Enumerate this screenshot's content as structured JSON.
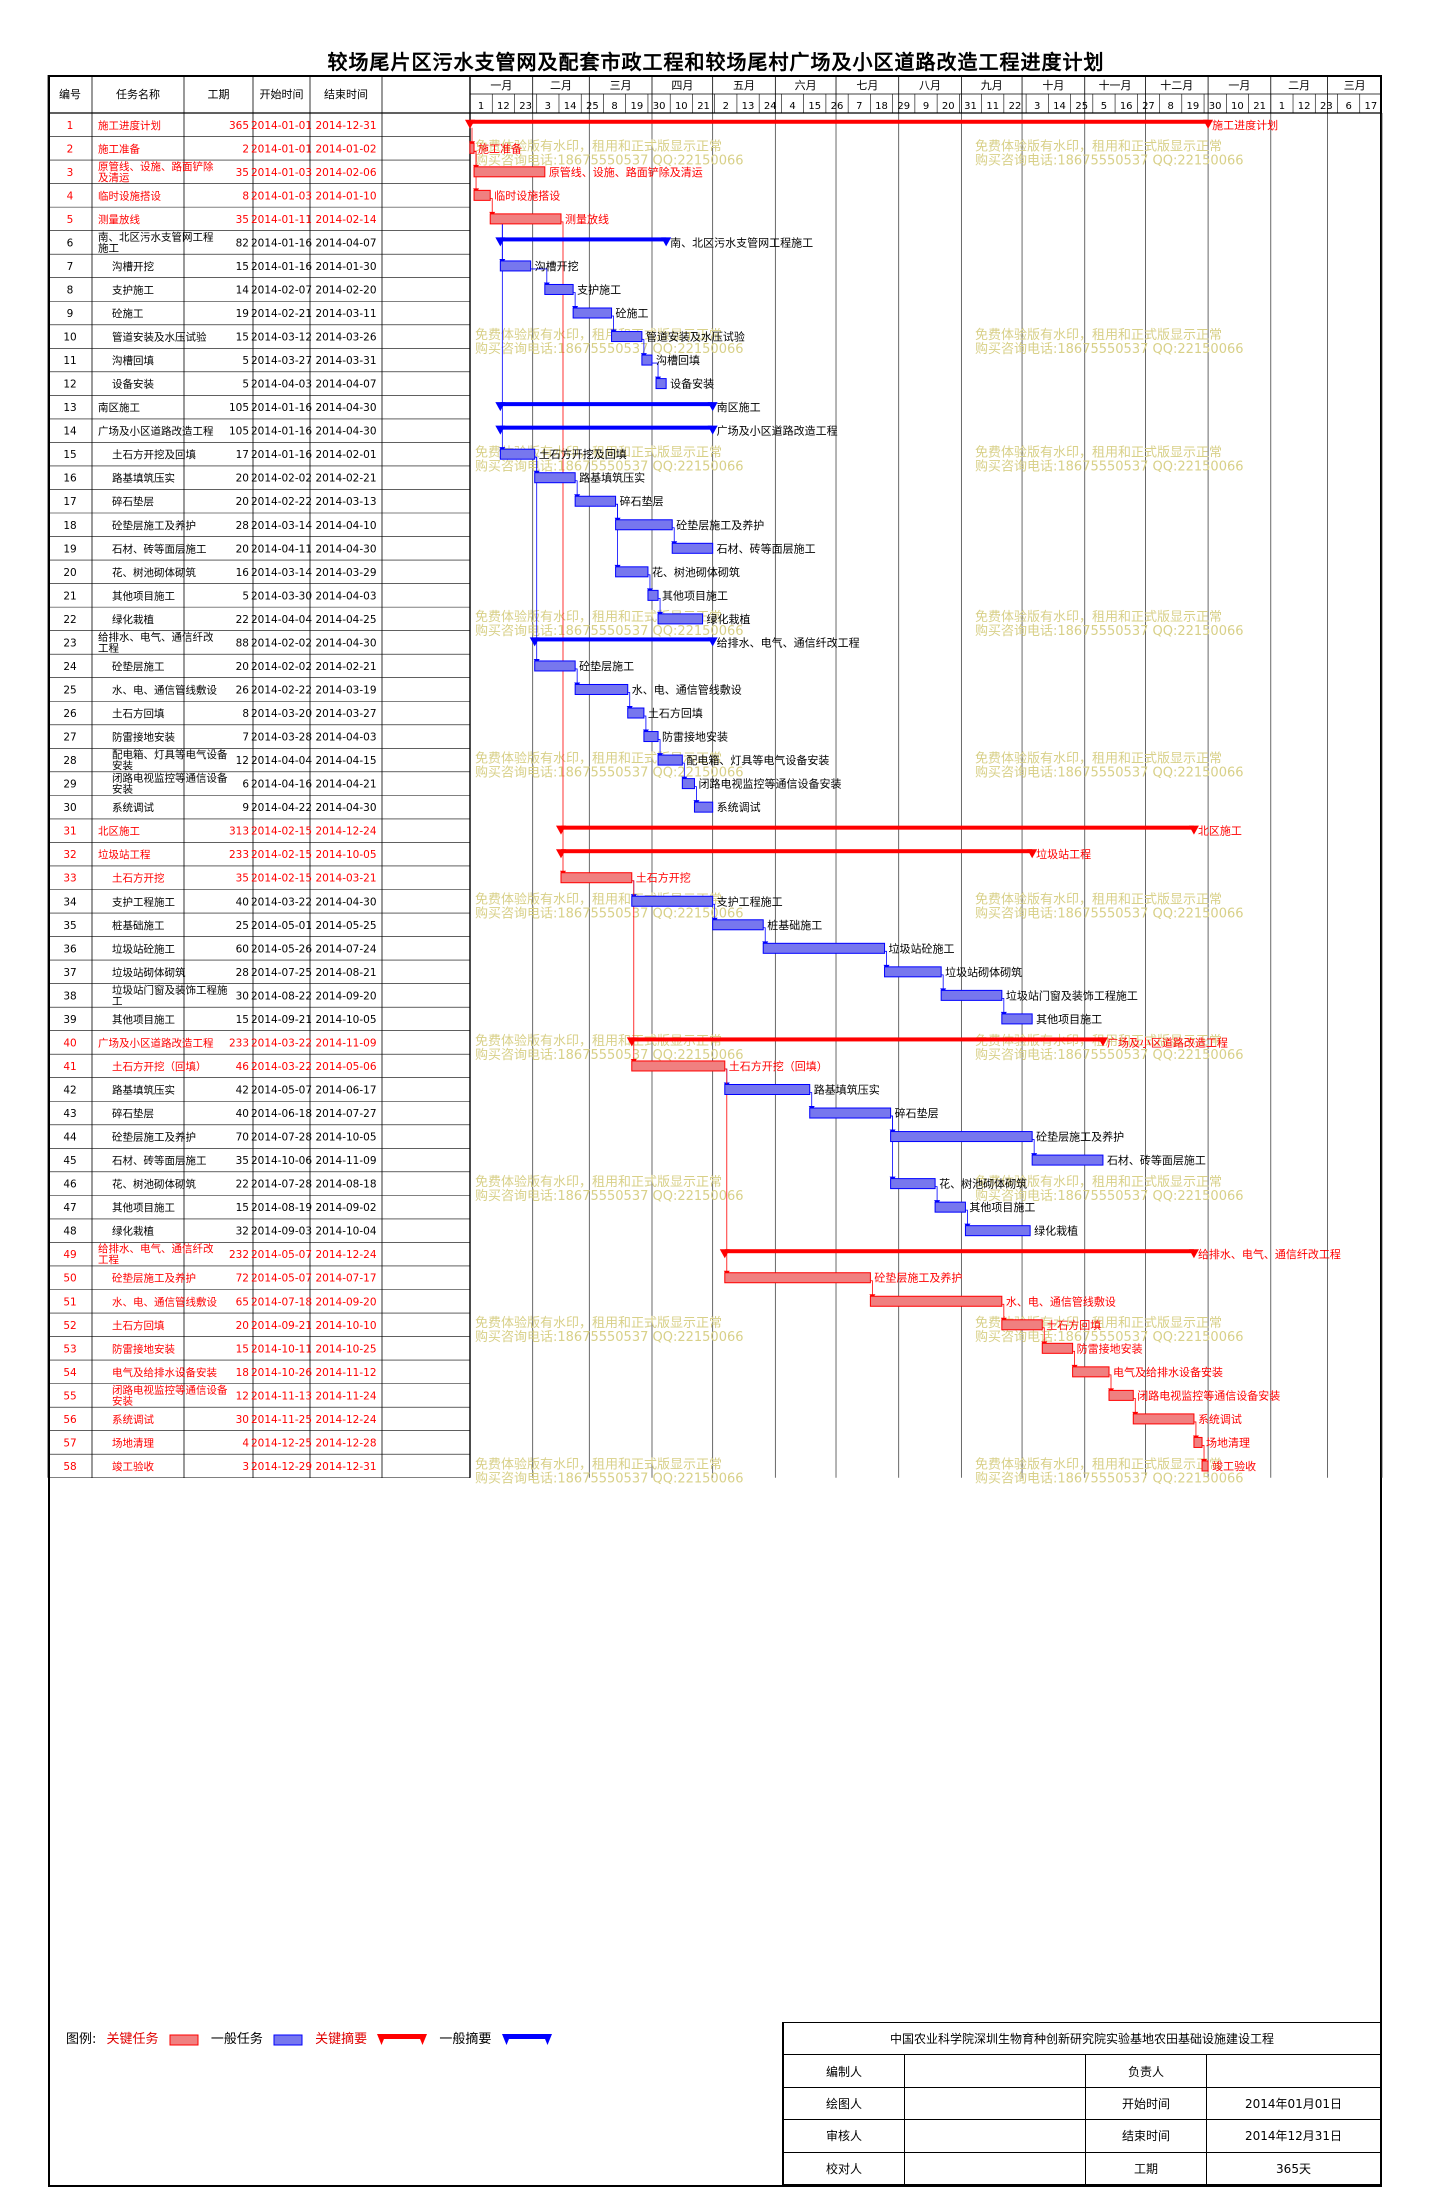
{
  "title": "较场尾片区污水支管网及配套市政工程和较场尾村广场及小区道路改造工程进度计划",
  "columns": {
    "no": "编号",
    "name": "任务名称",
    "dur": "工期",
    "start": "开始时间",
    "end": "结束时间"
  },
  "months": [
    "一月",
    "二月",
    "三月",
    "四月",
    "五月",
    "六月",
    "七月",
    "八月",
    "九月",
    "十月",
    "十一月",
    "十二月",
    "一月",
    "二月",
    "三月"
  ],
  "weeks": [
    "1",
    "12",
    "23",
    "3",
    "14",
    "25",
    "8",
    "19",
    "30",
    "10",
    "21",
    "2",
    "13",
    "24",
    "4",
    "15",
    "26",
    "7",
    "18",
    "29",
    "9",
    "20",
    "31",
    "11",
    "22",
    "3",
    "14",
    "25",
    "5",
    "16",
    "27",
    "8",
    "19",
    "30",
    "10",
    "21",
    "1",
    "12",
    "23",
    "6",
    "17"
  ],
  "watermark_lines": [
    "免费体验版有水印，租用和正式版显示正常",
    "购买咨询电话:18675550537 QQ:22150066"
  ],
  "legend": {
    "label": "图例:",
    "key_task": "关键任务",
    "normal_task": "一般任务",
    "key_summary": "关键摘要",
    "normal_summary": "一般摘要"
  },
  "signature": {
    "org": "中国农业科学院深圳生物育种创新研究院实验基地农田基础设施建设工程",
    "rows": [
      [
        "编制人",
        "",
        "负责人",
        ""
      ],
      [
        "绘图人",
        "",
        "开始时间",
        "2014年01月01日"
      ],
      [
        "审核人",
        "",
        "结束时间",
        "2014年12月31日"
      ],
      [
        "校对人",
        "",
        "工期",
        "365天"
      ]
    ]
  },
  "colors": {
    "critical": "#ff0000",
    "critical_fill": "#f08080",
    "normal": "#0000ff",
    "normal_fill": "#7777ee",
    "watermark": "#d8d088",
    "grid": "#999999"
  },
  "chart_data": {
    "type": "gantt",
    "time_range": [
      "2014-01-01",
      "2015-03-28"
    ],
    "tasks": [
      {
        "id": 1,
        "name": "施工进度计划",
        "duration": 365,
        "start": "2014-01-01",
        "end": "2014-12-31",
        "kind": "summary",
        "critical": true,
        "label": "施工进度计划"
      },
      {
        "id": 2,
        "name": "施工准备",
        "duration": 2,
        "start": "2014-01-01",
        "end": "2014-01-02",
        "kind": "task",
        "critical": true,
        "label": "施工准备",
        "deps": [
          1
        ]
      },
      {
        "id": 3,
        "name": "原管线、设施、路面铲除及清运",
        "duration": 35,
        "start": "2014-01-03",
        "end": "2014-02-06",
        "kind": "task",
        "critical": true,
        "label": "原管线、设施、路面铲除及清运",
        "deps": [
          2
        ]
      },
      {
        "id": 4,
        "name": "临时设施搭设",
        "duration": 8,
        "start": "2014-01-03",
        "end": "2014-01-10",
        "kind": "task",
        "critical": true,
        "label": "临时设施搭设",
        "deps": [
          2
        ]
      },
      {
        "id": 5,
        "name": "测量放线",
        "duration": 35,
        "start": "2014-01-11",
        "end": "2014-02-14",
        "kind": "task",
        "critical": true,
        "label": "测量放线",
        "deps": [
          4
        ]
      },
      {
        "id": 6,
        "name": "南、北区污水支管网工程施工",
        "duration": 82,
        "start": "2014-01-16",
        "end": "2014-04-07",
        "kind": "summary",
        "critical": false,
        "label": "南、北区污水支管网工程施工"
      },
      {
        "id": 7,
        "name": "沟槽开挖",
        "duration": 15,
        "start": "2014-01-16",
        "end": "2014-01-30",
        "kind": "task",
        "critical": false,
        "label": "沟槽开挖",
        "deps": [
          5
        ]
      },
      {
        "id": 8,
        "name": "支护施工",
        "duration": 14,
        "start": "2014-02-07",
        "end": "2014-02-20",
        "kind": "task",
        "critical": false,
        "label": "支护施工",
        "deps": [
          7
        ]
      },
      {
        "id": 9,
        "name": "砼施工",
        "duration": 19,
        "start": "2014-02-21",
        "end": "2014-03-11",
        "kind": "task",
        "critical": false,
        "label": "砼施工",
        "deps": [
          8
        ]
      },
      {
        "id": 10,
        "name": "管道安装及水压试验",
        "duration": 15,
        "start": "2014-03-12",
        "end": "2014-03-26",
        "kind": "task",
        "critical": false,
        "label": "管道安装及水压试验",
        "deps": [
          9
        ]
      },
      {
        "id": 11,
        "name": "沟槽回填",
        "duration": 5,
        "start": "2014-03-27",
        "end": "2014-03-31",
        "kind": "task",
        "critical": false,
        "label": "沟槽回填",
        "deps": [
          10
        ]
      },
      {
        "id": 12,
        "name": "设备安装",
        "duration": 5,
        "start": "2014-04-03",
        "end": "2014-04-07",
        "kind": "task",
        "critical": false,
        "label": "设备安装",
        "deps": [
          11
        ]
      },
      {
        "id": 13,
        "name": "南区施工",
        "duration": 105,
        "start": "2014-01-16",
        "end": "2014-04-30",
        "kind": "summary",
        "critical": false,
        "label": "南区施工"
      },
      {
        "id": 14,
        "name": "广场及小区道路改造工程",
        "duration": 105,
        "start": "2014-01-16",
        "end": "2014-04-30",
        "kind": "summary",
        "critical": false,
        "label": "广场及小区道路改造工程"
      },
      {
        "id": 15,
        "name": "土石方开挖及回填",
        "duration": 17,
        "start": "2014-01-16",
        "end": "2014-02-01",
        "kind": "task",
        "critical": false,
        "label": "土石方开挖及回填",
        "deps": [
          5
        ]
      },
      {
        "id": 16,
        "name": "路基填筑压实",
        "duration": 20,
        "start": "2014-02-02",
        "end": "2014-02-21",
        "kind": "task",
        "critical": false,
        "label": "路基填筑压实",
        "deps": [
          15
        ]
      },
      {
        "id": 17,
        "name": "碎石垫层",
        "duration": 20,
        "start": "2014-02-22",
        "end": "2014-03-13",
        "kind": "task",
        "critical": false,
        "label": "碎石垫层",
        "deps": [
          16
        ]
      },
      {
        "id": 18,
        "name": "砼垫层施工及养护",
        "duration": 28,
        "start": "2014-03-14",
        "end": "2014-04-10",
        "kind": "task",
        "critical": false,
        "label": "砼垫层施工及养护",
        "deps": [
          17
        ]
      },
      {
        "id": 19,
        "name": "石材、砖等面层施工",
        "duration": 20,
        "start": "2014-04-11",
        "end": "2014-04-30",
        "kind": "task",
        "critical": false,
        "label": "石材、砖等面层施工",
        "deps": [
          18
        ]
      },
      {
        "id": 20,
        "name": "花、树池砌体砌筑",
        "duration": 16,
        "start": "2014-03-14",
        "end": "2014-03-29",
        "kind": "task",
        "critical": false,
        "label": "花、树池砌体砌筑",
        "deps": [
          17
        ]
      },
      {
        "id": 21,
        "name": "其他项目施工",
        "duration": 5,
        "start": "2014-03-30",
        "end": "2014-04-03",
        "kind": "task",
        "critical": false,
        "label": "其他项目施工",
        "deps": [
          20
        ]
      },
      {
        "id": 22,
        "name": "绿化栽植",
        "duration": 22,
        "start": "2014-04-04",
        "end": "2014-04-25",
        "kind": "task",
        "critical": false,
        "label": "绿化栽植",
        "deps": [
          21
        ]
      },
      {
        "id": 23,
        "name": "给排水、电气、通信纤改工程",
        "duration": 88,
        "start": "2014-02-02",
        "end": "2014-04-30",
        "kind": "summary",
        "critical": false,
        "label": "给排水、电气、通信纤改工程"
      },
      {
        "id": 24,
        "name": "砼垫层施工",
        "duration": 20,
        "start": "2014-02-02",
        "end": "2014-02-21",
        "kind": "task",
        "critical": false,
        "label": "砼垫层施工",
        "deps": [
          15
        ]
      },
      {
        "id": 25,
        "name": "水、电、通信管线敷设",
        "duration": 26,
        "start": "2014-02-22",
        "end": "2014-03-19",
        "kind": "task",
        "critical": false,
        "label": "水、电、通信管线敷设",
        "deps": [
          24
        ]
      },
      {
        "id": 26,
        "name": "土石方回填",
        "duration": 8,
        "start": "2014-03-20",
        "end": "2014-03-27",
        "kind": "task",
        "critical": false,
        "label": "土石方回填",
        "deps": [
          25
        ]
      },
      {
        "id": 27,
        "name": "防雷接地安装",
        "duration": 7,
        "start": "2014-03-28",
        "end": "2014-04-03",
        "kind": "task",
        "critical": false,
        "label": "防雷接地安装",
        "deps": [
          26
        ]
      },
      {
        "id": 28,
        "name": "配电箱、灯具等电气设备安装",
        "duration": 12,
        "start": "2014-04-04",
        "end": "2014-04-15",
        "kind": "task",
        "critical": false,
        "label": "配电箱、灯具等电气设备安装",
        "deps": [
          27
        ]
      },
      {
        "id": 29,
        "name": "闭路电视监控等通信设备安装",
        "duration": 6,
        "start": "2014-04-16",
        "end": "2014-04-21",
        "kind": "task",
        "critical": false,
        "label": "闭路电视监控等通信设备安装",
        "deps": [
          28
        ]
      },
      {
        "id": 30,
        "name": "系统调试",
        "duration": 9,
        "start": "2014-04-22",
        "end": "2014-04-30",
        "kind": "task",
        "critical": false,
        "label": "系统调试",
        "deps": [
          29
        ]
      },
      {
        "id": 31,
        "name": "北区施工",
        "duration": 313,
        "start": "2014-02-15",
        "end": "2014-12-24",
        "kind": "summary",
        "critical": true,
        "label": "北区施工"
      },
      {
        "id": 32,
        "name": "垃圾站工程",
        "duration": 233,
        "start": "2014-02-15",
        "end": "2014-10-05",
        "kind": "summary",
        "critical": true,
        "label": "垃圾站工程"
      },
      {
        "id": 33,
        "name": "土石方开挖",
        "duration": 35,
        "start": "2014-02-15",
        "end": "2014-03-21",
        "kind": "task",
        "critical": true,
        "label": "土石方开挖",
        "deps": [
          5
        ]
      },
      {
        "id": 34,
        "name": "支护工程施工",
        "duration": 40,
        "start": "2014-03-22",
        "end": "2014-04-30",
        "kind": "task",
        "critical": false,
        "label": "支护工程施工",
        "deps": [
          33
        ]
      },
      {
        "id": 35,
        "name": "桩基础施工",
        "duration": 25,
        "start": "2014-05-01",
        "end": "2014-05-25",
        "kind": "task",
        "critical": false,
        "label": "桩基础施工",
        "deps": [
          34
        ]
      },
      {
        "id": 36,
        "name": "垃圾站砼施工",
        "duration": 60,
        "start": "2014-05-26",
        "end": "2014-07-24",
        "kind": "task",
        "critical": false,
        "label": "垃圾站砼施工",
        "deps": [
          35
        ]
      },
      {
        "id": 37,
        "name": "垃圾站砌体砌筑",
        "duration": 28,
        "start": "2014-07-25",
        "end": "2014-08-21",
        "kind": "task",
        "critical": false,
        "label": "垃圾站砌体砌筑",
        "deps": [
          36
        ]
      },
      {
        "id": 38,
        "name": "垃圾站门窗及装饰工程施工",
        "duration": 30,
        "start": "2014-08-22",
        "end": "2014-09-20",
        "kind": "task",
        "critical": false,
        "label": "垃圾站门窗及装饰工程施工",
        "deps": [
          37
        ]
      },
      {
        "id": 39,
        "name": "其他项目施工",
        "duration": 15,
        "start": "2014-09-21",
        "end": "2014-10-05",
        "kind": "task",
        "critical": false,
        "label": "其他项目施工",
        "deps": [
          38
        ]
      },
      {
        "id": 40,
        "name": "广场及小区道路改造工程",
        "duration": 233,
        "start": "2014-03-22",
        "end": "2014-11-09",
        "kind": "summary",
        "critical": true,
        "label": "广场及小区道路改造工程"
      },
      {
        "id": 41,
        "name": "土石方开挖（回填）",
        "duration": 46,
        "start": "2014-03-22",
        "end": "2014-05-06",
        "kind": "task",
        "critical": true,
        "label": "土石方开挖（回填）",
        "deps": [
          33
        ]
      },
      {
        "id": 42,
        "name": "路基填筑压实",
        "duration": 42,
        "start": "2014-05-07",
        "end": "2014-06-17",
        "kind": "task",
        "critical": false,
        "label": "路基填筑压实",
        "deps": [
          41
        ]
      },
      {
        "id": 43,
        "name": "碎石垫层",
        "duration": 40,
        "start": "2014-06-18",
        "end": "2014-07-27",
        "kind": "task",
        "critical": false,
        "label": "碎石垫层",
        "deps": [
          42
        ]
      },
      {
        "id": 44,
        "name": "砼垫层施工及养护",
        "duration": 70,
        "start": "2014-07-28",
        "end": "2014-10-05",
        "kind": "task",
        "critical": false,
        "label": "砼垫层施工及养护",
        "deps": [
          43
        ]
      },
      {
        "id": 45,
        "name": "石材、砖等面层施工",
        "duration": 35,
        "start": "2014-10-06",
        "end": "2014-11-09",
        "kind": "task",
        "critical": false,
        "label": "石材、砖等面层施工",
        "deps": [
          44
        ]
      },
      {
        "id": 46,
        "name": "花、树池砌体砌筑",
        "duration": 22,
        "start": "2014-07-28",
        "end": "2014-08-18",
        "kind": "task",
        "critical": false,
        "label": "花、树池砌体砌筑",
        "deps": [
          43
        ]
      },
      {
        "id": 47,
        "name": "其他项目施工",
        "duration": 15,
        "start": "2014-08-19",
        "end": "2014-09-02",
        "kind": "task",
        "critical": false,
        "label": "其他项目施工",
        "deps": [
          46
        ]
      },
      {
        "id": 48,
        "name": "绿化栽植",
        "duration": 32,
        "start": "2014-09-03",
        "end": "2014-10-04",
        "kind": "task",
        "critical": false,
        "label": "绿化栽植",
        "deps": [
          47
        ]
      },
      {
        "id": 49,
        "name": "给排水、电气、通信纤改工程",
        "duration": 232,
        "start": "2014-05-07",
        "end": "2014-12-24",
        "kind": "summary",
        "critical": true,
        "label": "给排水、电气、通信纤改工程"
      },
      {
        "id": 50,
        "name": "砼垫层施工及养护",
        "duration": 72,
        "start": "2014-05-07",
        "end": "2014-07-17",
        "kind": "task",
        "critical": true,
        "label": "砼垫层施工及养护",
        "deps": [
          41
        ]
      },
      {
        "id": 51,
        "name": "水、电、通信管线敷设",
        "duration": 65,
        "start": "2014-07-18",
        "end": "2014-09-20",
        "kind": "task",
        "critical": true,
        "label": "水、电、通信管线敷设",
        "deps": [
          50
        ]
      },
      {
        "id": 52,
        "name": "土石方回填",
        "duration": 20,
        "start": "2014-09-21",
        "end": "2014-10-10",
        "kind": "task",
        "critical": true,
        "label": "土石方回填",
        "deps": [
          51
        ]
      },
      {
        "id": 53,
        "name": "防雷接地安装",
        "duration": 15,
        "start": "2014-10-11",
        "end": "2014-10-25",
        "kind": "task",
        "critical": true,
        "label": "防雷接地安装",
        "deps": [
          52
        ]
      },
      {
        "id": 54,
        "name": "电气及给排水设备安装",
        "duration": 18,
        "start": "2014-10-26",
        "end": "2014-11-12",
        "kind": "task",
        "critical": true,
        "label": "电气及给排水设备安装",
        "deps": [
          53
        ]
      },
      {
        "id": 55,
        "name": "闭路电视监控等通信设备安装",
        "duration": 12,
        "start": "2014-11-13",
        "end": "2014-11-24",
        "kind": "task",
        "critical": true,
        "label": "闭路电视监控等通信设备安装",
        "deps": [
          54
        ]
      },
      {
        "id": 56,
        "name": "系统调试",
        "duration": 30,
        "start": "2014-11-25",
        "end": "2014-12-24",
        "kind": "task",
        "critical": true,
        "label": "系统调试",
        "deps": [
          55
        ]
      },
      {
        "id": 57,
        "name": "场地清理",
        "duration": 4,
        "start": "2014-12-25",
        "end": "2014-12-28",
        "kind": "task",
        "critical": true,
        "label": "场地清理",
        "deps": [
          56
        ]
      },
      {
        "id": 58,
        "name": "竣工验收",
        "duration": 3,
        "start": "2014-12-29",
        "end": "2014-12-31",
        "kind": "task",
        "critical": true,
        "label": "竣工验收",
        "deps": [
          57
        ]
      }
    ]
  }
}
